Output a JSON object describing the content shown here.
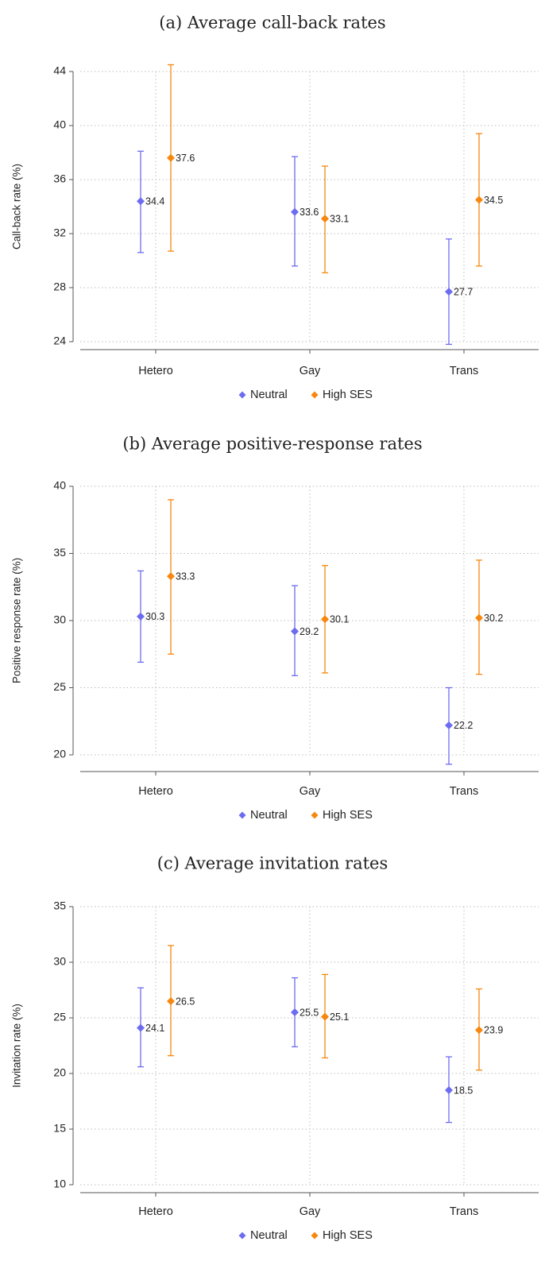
{
  "colors": {
    "neutral": "#6c6cf0",
    "high_ses": "#f7870e"
  },
  "chart_data": [
    {
      "type": "scatter",
      "title": "(a) Average call-back rates",
      "xlabel": "",
      "ylabel": "Call-back rate (%)",
      "categories": [
        "Hetero",
        "Gay",
        "Trans"
      ],
      "ylim": [
        24,
        44
      ],
      "yticks": [
        24,
        28,
        32,
        36,
        40,
        44
      ],
      "grid": true,
      "legend": "bottom-center",
      "series": [
        {
          "name": "Neutral",
          "values": [
            34.4,
            33.6,
            27.7
          ],
          "labels": [
            "34.4",
            "33.6",
            "27.7"
          ],
          "ci_low": [
            30.6,
            29.6,
            23.8
          ],
          "ci_high": [
            38.1,
            37.7,
            31.6
          ]
        },
        {
          "name": "High SES",
          "values": [
            37.6,
            33.1,
            34.5
          ],
          "labels": [
            "37.6",
            "33.1",
            "34.5"
          ],
          "ci_low": [
            30.7,
            29.1,
            29.6
          ],
          "ci_high": [
            44.5,
            37.0,
            39.4
          ]
        }
      ]
    },
    {
      "type": "scatter",
      "title": "(b) Average positive-response rates",
      "xlabel": "",
      "ylabel": "Positive response rate (%)",
      "categories": [
        "Hetero",
        "Gay",
        "Trans"
      ],
      "ylim": [
        20,
        40
      ],
      "yticks": [
        20,
        25,
        30,
        35,
        40
      ],
      "grid": true,
      "legend": "bottom-center",
      "series": [
        {
          "name": "Neutral",
          "values": [
            30.3,
            29.2,
            22.2
          ],
          "labels": [
            "30.3",
            "29.2",
            "22.2"
          ],
          "ci_low": [
            26.9,
            25.9,
            19.3
          ],
          "ci_high": [
            33.7,
            32.6,
            25.0
          ]
        },
        {
          "name": "High SES",
          "values": [
            33.3,
            30.1,
            30.2
          ],
          "labels": [
            "33.3",
            "30.1",
            "30.2"
          ],
          "ci_low": [
            27.5,
            26.1,
            26.0
          ],
          "ci_high": [
            39.0,
            34.1,
            34.5
          ]
        }
      ]
    },
    {
      "type": "scatter",
      "title": "(c) Average invitation rates",
      "xlabel": "",
      "ylabel": "Invitation rate (%)",
      "categories": [
        "Hetero",
        "Gay",
        "Trans"
      ],
      "ylim": [
        10,
        35
      ],
      "yticks": [
        10,
        15,
        20,
        25,
        30,
        35
      ],
      "grid": true,
      "legend": "bottom-center",
      "series": [
        {
          "name": "Neutral",
          "values": [
            24.1,
            25.5,
            18.5
          ],
          "labels": [
            "24.1",
            "25.5",
            "18.5"
          ],
          "ci_low": [
            20.6,
            22.4,
            15.6
          ],
          "ci_high": [
            27.7,
            28.6,
            21.5
          ]
        },
        {
          "name": "High SES",
          "values": [
            26.5,
            25.1,
            23.9
          ],
          "labels": [
            "26.5",
            "25.1",
            "23.9"
          ],
          "ci_low": [
            21.6,
            21.4,
            20.3
          ],
          "ci_high": [
            31.5,
            28.9,
            27.6
          ]
        }
      ]
    }
  ]
}
